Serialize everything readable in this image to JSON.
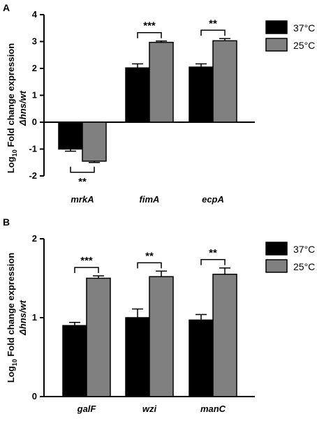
{
  "chart_data": [
    {
      "panel": "A",
      "type": "bar",
      "ylabel_main": "Log",
      "ylabel_sub": "10",
      "ylabel_rest": " Fold change expression",
      "ylabel_line2": "Δhns/wt",
      "ylim": [
        -2,
        4
      ],
      "yticks": [
        "-2",
        "-1",
        "0",
        "1",
        "2",
        "3",
        "4"
      ],
      "categories": [
        "mrkA",
        "fimA",
        "ecpA"
      ],
      "series": [
        {
          "name": "37°C",
          "color": "#000000",
          "values": [
            -1.0,
            2.02,
            2.05
          ],
          "errors": [
            0.08,
            0.15,
            0.12
          ]
        },
        {
          "name": "25°C",
          "color": "#808080",
          "values": [
            -1.45,
            2.97,
            3.03
          ],
          "errors": [
            0.05,
            0.05,
            0.08
          ]
        }
      ],
      "significance": [
        "**",
        "***",
        "**"
      ],
      "legend_position": "top-right"
    },
    {
      "panel": "B",
      "type": "bar",
      "ylabel_main": "Log",
      "ylabel_sub": "10",
      "ylabel_rest": " Fold change expression",
      "ylabel_line2": "Δhns/wt",
      "ylim": [
        0,
        2
      ],
      "yticks": [
        "0",
        "1",
        "2"
      ],
      "categories": [
        "galF",
        "wzi",
        "manC"
      ],
      "series": [
        {
          "name": "37°C",
          "color": "#000000",
          "values": [
            0.9,
            1.0,
            0.97
          ],
          "errors": [
            0.04,
            0.11,
            0.07
          ]
        },
        {
          "name": "25°C",
          "color": "#808080",
          "values": [
            1.5,
            1.52,
            1.55
          ],
          "errors": [
            0.03,
            0.07,
            0.08
          ]
        }
      ],
      "significance": [
        "***",
        "**",
        "**"
      ],
      "legend_position": "top-right"
    }
  ]
}
